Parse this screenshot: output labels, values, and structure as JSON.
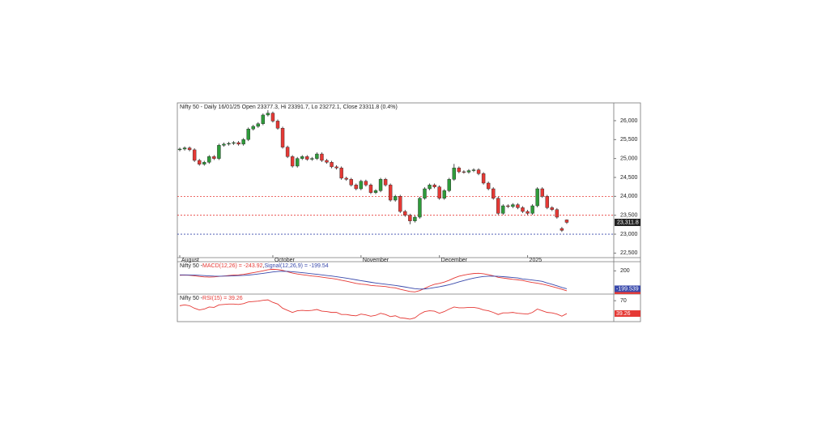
{
  "chart_data": [
    {
      "type": "candlestick",
      "title": "Nifty 50 - Daily 16/01/25 Open 23377.3, Hi 23391.7, Lo 23272.1, Close 23311.8 (0.4%)",
      "categories": [
        "August",
        null,
        null,
        null,
        null,
        null,
        null,
        null,
        null,
        null,
        null,
        null,
        null,
        null,
        null,
        null,
        null,
        null,
        null,
        "October",
        null,
        null,
        null,
        null,
        null,
        null,
        null,
        null,
        null,
        null,
        null,
        null,
        null,
        null,
        null,
        null,
        null,
        "November",
        null,
        null,
        null,
        null,
        null,
        null,
        null,
        null,
        null,
        null,
        null,
        null,
        null,
        null,
        null,
        "December",
        null,
        null,
        null,
        null,
        null,
        null,
        null,
        null,
        null,
        null,
        null,
        null,
        null,
        null,
        null,
        null,
        null,
        "2025",
        null,
        null,
        null,
        null,
        null,
        null,
        null,
        null
      ],
      "open": [
        25230,
        25250,
        25280,
        25230,
        24950,
        24850,
        24900,
        25050,
        25000,
        25350,
        25380,
        25400,
        25420,
        25380,
        25500,
        25780,
        25850,
        25920,
        26150,
        26200,
        25990,
        25800,
        25300,
        25050,
        24800,
        25000,
        25050,
        24980,
        25000,
        25120,
        24950,
        24900,
        24780,
        24750,
        24480,
        24450,
        24300,
        24200,
        24400,
        24300,
        24100,
        24150,
        24450,
        24300,
        23900,
        24000,
        23600,
        23500,
        23350,
        23450,
        23950,
        24200,
        24300,
        24250,
        23950,
        24150,
        24450,
        24750,
        24650,
        24640,
        24680,
        24700,
        24600,
        24350,
        24200,
        23950,
        23550,
        23750,
        23730,
        23780,
        23700,
        23600,
        23550,
        23750,
        24200,
        24000,
        23700,
        23650,
        23150,
        23377.3
      ],
      "high": [
        25290,
        25320,
        25320,
        25270,
        24990,
        24940,
        25090,
        25090,
        25390,
        25420,
        25440,
        25460,
        25460,
        25540,
        25820,
        25890,
        25960,
        26190,
        26277,
        26240,
        26030,
        25840,
        25340,
        25090,
        25040,
        25090,
        25090,
        25040,
        25160,
        25160,
        24990,
        24940,
        24820,
        24790,
        24520,
        24490,
        24340,
        24440,
        24440,
        24340,
        24190,
        24490,
        24490,
        24340,
        24040,
        24040,
        23640,
        23540,
        23490,
        23990,
        24240,
        24340,
        24340,
        24290,
        24190,
        24490,
        24857,
        24790,
        24690,
        24720,
        24740,
        24740,
        24640,
        24390,
        24240,
        23990,
        23790,
        23790,
        23820,
        23820,
        23740,
        23640,
        23790,
        24240,
        24240,
        24040,
        23740,
        23690,
        23190,
        23391.7
      ],
      "low": [
        25190,
        25210,
        25190,
        24910,
        24810,
        24810,
        24860,
        24960,
        24960,
        25310,
        25340,
        25360,
        25340,
        25340,
        25460,
        25740,
        25810,
        25880,
        26110,
        25950,
        25760,
        25260,
        25010,
        24760,
        24760,
        24960,
        24940,
        24940,
        24960,
        24910,
        24860,
        24740,
        24710,
        24440,
        24410,
        24260,
        24160,
        24160,
        24260,
        24060,
        24060,
        24110,
        24260,
        23860,
        23860,
        23560,
        23460,
        23263,
        23310,
        23410,
        23910,
        24160,
        24210,
        23910,
        23910,
        24110,
        24410,
        24610,
        24600,
        24600,
        24640,
        24560,
        24310,
        24160,
        23910,
        23510,
        23510,
        23690,
        23690,
        23660,
        23560,
        23510,
        23510,
        23710,
        23960,
        23660,
        23610,
        23410,
        23060,
        23272.1
      ],
      "close": [
        25250,
        25280,
        25230,
        24950,
        24850,
        24900,
        25050,
        25000,
        25350,
        25380,
        25400,
        25420,
        25380,
        25500,
        25780,
        25850,
        25920,
        26150,
        26200,
        25990,
        25800,
        25300,
        25050,
        24800,
        25000,
        25050,
        24980,
        25000,
        25120,
        24950,
        24900,
        24780,
        24750,
        24480,
        24450,
        24300,
        24200,
        24400,
        24300,
        24100,
        24150,
        24450,
        24300,
        23900,
        24000,
        23600,
        23500,
        23350,
        23450,
        23950,
        24200,
        24300,
        24250,
        23950,
        24150,
        24450,
        24750,
        24650,
        24640,
        24680,
        24700,
        24600,
        24350,
        24200,
        23950,
        23550,
        23750,
        23730,
        23780,
        23700,
        23600,
        23550,
        23750,
        24200,
        24000,
        23700,
        23650,
        23450,
        23100,
        23311.8
      ],
      "last_label": "23,311.8",
      "up_color": "#2e9b3a",
      "down_color": "#e53935",
      "reference_lines": [
        {
          "value": 24000,
          "color": "#e53935"
        },
        {
          "value": 23500,
          "color": "#e53935"
        },
        {
          "value": 23000,
          "color": "#3949ab"
        }
      ],
      "ylim": [
        22380,
        26470
      ],
      "yticks": [
        {
          "value": 22500,
          "label": "22,500"
        },
        {
          "value": 23000,
          "label": "23,000"
        },
        {
          "value": 23500,
          "label": "23,500"
        },
        {
          "value": 24000,
          "label": "24,000"
        },
        {
          "value": 24500,
          "label": "24,500"
        },
        {
          "value": 25000,
          "label": "25,000"
        },
        {
          "value": 25500,
          "label": "25,500"
        },
        {
          "value": 26000,
          "label": "26,000"
        }
      ]
    },
    {
      "type": "line",
      "title_parts": [
        "Nifty 50 - ",
        "MACD(12,26) = -243.92",
        ", ",
        "Signal(12,26,9) = -199.54"
      ],
      "series": [
        {
          "name": "MACD",
          "color": "#e53935",
          "values": [
            100,
            105,
            100,
            90,
            75,
            65,
            60,
            65,
            75,
            85,
            95,
            105,
            110,
            120,
            140,
            160,
            180,
            200,
            225,
            235,
            230,
            210,
            180,
            150,
            130,
            115,
            100,
            85,
            75,
            60,
            45,
            30,
            15,
            -10,
            -30,
            -55,
            -80,
            -95,
            -105,
            -125,
            -135,
            -140,
            -150,
            -170,
            -180,
            -210,
            -235,
            -260,
            -270,
            -240,
            -190,
            -140,
            -100,
            -80,
            -50,
            -10,
            40,
            80,
            105,
            125,
            140,
            145,
            135,
            115,
            90,
            55,
            40,
            25,
            10,
            0,
            -15,
            -40,
            -60,
            -75,
            -95,
            -120,
            -150,
            -180,
            -210,
            -243.92
          ]
        },
        {
          "name": "Signal",
          "color": "#3949ab",
          "values": [
            110,
            110,
            108,
            105,
            100,
            93,
            87,
            82,
            81,
            82,
            84,
            89,
            93,
            98,
            106,
            117,
            130,
            144,
            160,
            175,
            186,
            190,
            188,
            180,
            170,
            159,
            147,
            135,
            123,
            110,
            97,
            84,
            70,
            54,
            37,
            19,
            0,
            -19,
            -36,
            -54,
            -70,
            -84,
            -97,
            -112,
            -125,
            -142,
            -160,
            -180,
            -198,
            -206,
            -203,
            -190,
            -172,
            -154,
            -133,
            -109,
            -79,
            -47,
            -16,
            12,
            37,
            58,
            73,
            81,
            83,
            78,
            70,
            61,
            51,
            41,
            20,
            8,
            -6,
            -20,
            -35,
            -70,
            -100,
            -135,
            -170,
            -199.539
          ]
        }
      ],
      "ylim": [
        -300,
        350
      ],
      "yticks": [
        200
      ]
    },
    {
      "type": "line",
      "title_parts": [
        "Nifty 50 - ",
        "RSI(15) = 39.26"
      ],
      "series": [
        {
          "name": "RSI",
          "color": "#e53935",
          "values": [
            58,
            60,
            58,
            52,
            48,
            50,
            55,
            54,
            60,
            61,
            62,
            62,
            61,
            63,
            67,
            68,
            69,
            71,
            72,
            66,
            62,
            52,
            47,
            42,
            46,
            47,
            46,
            47,
            49,
            45,
            44,
            42,
            42,
            37,
            37,
            35,
            34,
            38,
            36,
            33,
            35,
            40,
            37,
            32,
            34,
            29,
            28,
            26,
            29,
            38,
            44,
            46,
            45,
            40,
            44,
            50,
            55,
            53,
            53,
            54,
            54,
            52,
            48,
            46,
            42,
            37,
            41,
            41,
            42,
            40,
            39,
            38,
            42,
            50,
            46,
            42,
            41,
            38,
            33,
            39.26
          ]
        }
      ],
      "ylim": [
        20,
        80
      ],
      "yticks": [
        70
      ]
    }
  ]
}
